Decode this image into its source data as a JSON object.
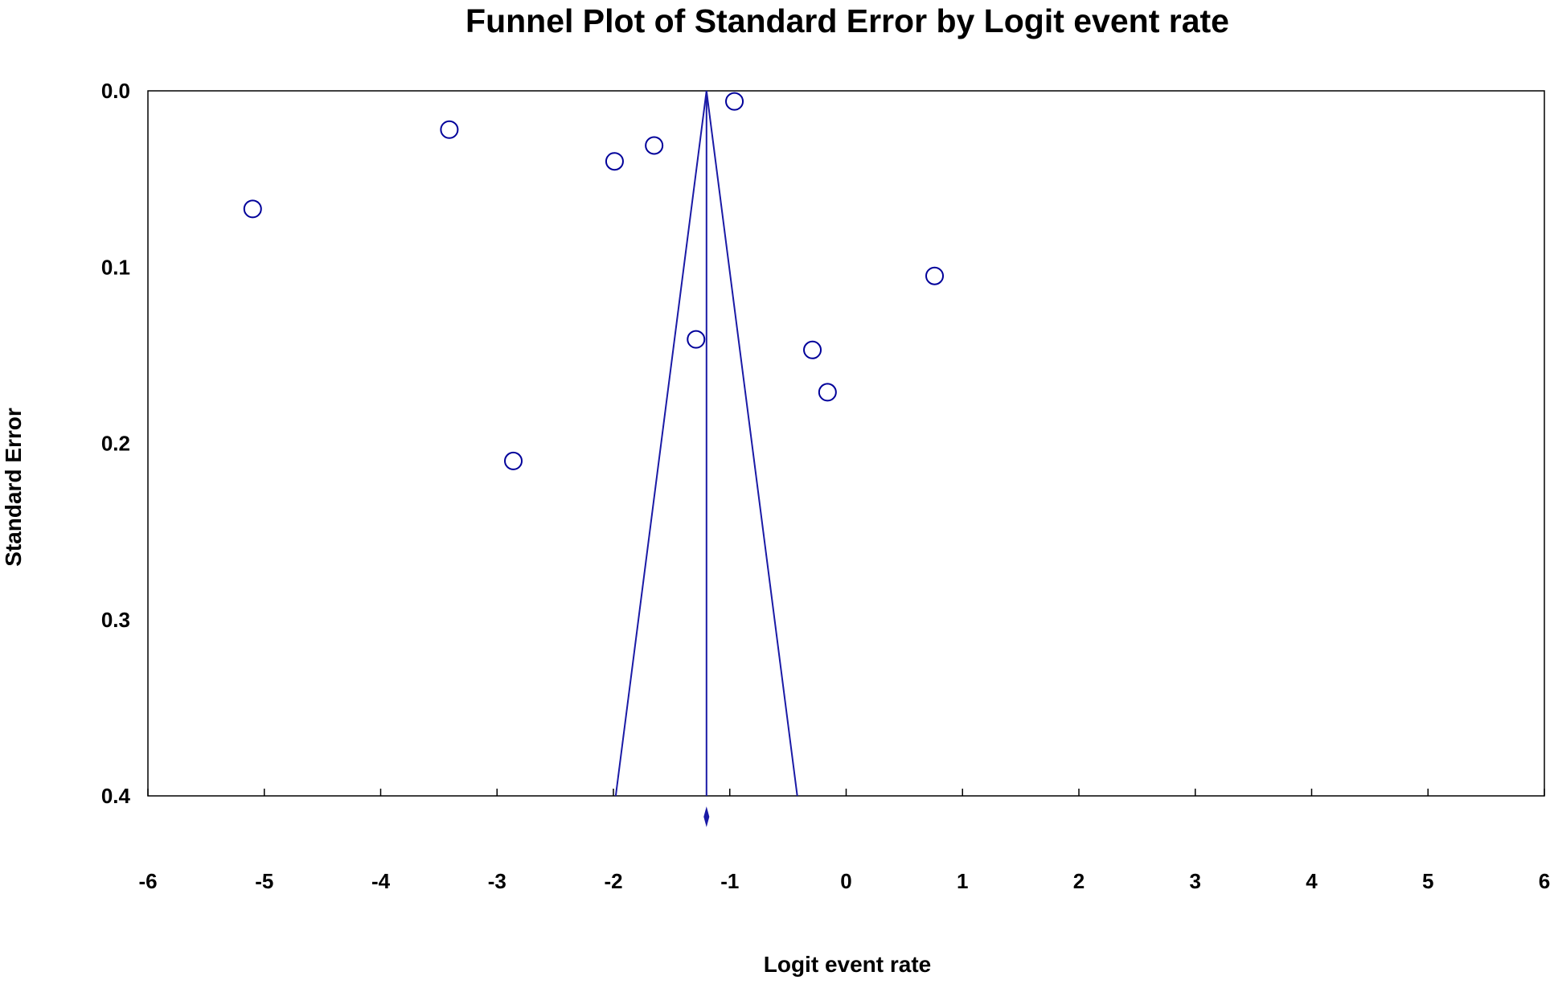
{
  "chart_data": {
    "type": "scatter",
    "title": "Funnel Plot of Standard Error by Logit event rate",
    "xlabel": "Logit event rate",
    "ylabel": "Standard Error",
    "xlim": [
      -6,
      6
    ],
    "ylim": [
      0.0,
      0.4
    ],
    "y_inverted": true,
    "x_ticks": [
      "-6",
      "-5",
      "-4",
      "-3",
      "-2",
      "-1",
      "0",
      "1",
      "2",
      "3",
      "4",
      "5",
      "6"
    ],
    "y_ticks": [
      "0.0",
      "0.1",
      "0.2",
      "0.3",
      "0.4"
    ],
    "grid": false,
    "legend": "none",
    "pooled_estimate": -1.2,
    "funnel_bounds_at_max_se": [
      -1.98,
      -0.42
    ],
    "points": [
      {
        "x": -5.1,
        "y": 0.067
      },
      {
        "x": -3.41,
        "y": 0.022
      },
      {
        "x": -2.86,
        "y": 0.21
      },
      {
        "x": -1.99,
        "y": 0.04
      },
      {
        "x": -1.65,
        "y": 0.031
      },
      {
        "x": -1.29,
        "y": 0.141
      },
      {
        "x": -0.96,
        "y": 0.006
      },
      {
        "x": -0.29,
        "y": 0.147
      },
      {
        "x": -0.16,
        "y": 0.171
      },
      {
        "x": 0.76,
        "y": 0.105
      }
    ],
    "colors": {
      "marker": "#00009a",
      "funnel": "#1a1aa6",
      "axis": "#000000"
    }
  }
}
